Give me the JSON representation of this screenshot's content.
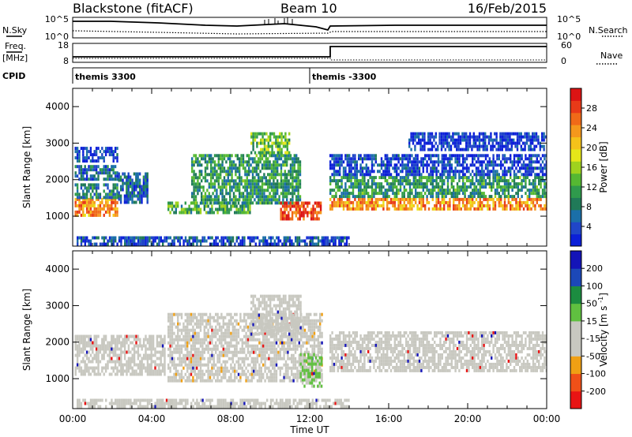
{
  "header": {
    "station": "Blackstone (fitACF)",
    "beam": "Beam 10",
    "date": "16/Feb/2015"
  },
  "sky_panel": {
    "left_label": "N.Sky",
    "right_label": "N.Search",
    "left_ticks": [
      "10^5",
      "10^0"
    ],
    "right_ticks": [
      "10^5",
      "10^0"
    ]
  },
  "freq_panel": {
    "left_label_top": "Freq.",
    "left_label_bottom": "[MHz]",
    "right_label": "Nave",
    "left_ticks": [
      "18",
      "8"
    ],
    "right_ticks": [
      "60",
      "0"
    ]
  },
  "cpid": {
    "label": "CPID",
    "segments": [
      {
        "start_hour": 0.0,
        "name": "themis 3300"
      },
      {
        "start_hour": 12.0,
        "name": "themis -3300"
      }
    ]
  },
  "chart_data": [
    {
      "type": "heatmap",
      "name": "power",
      "ylabel": "Slant Range [km]",
      "xlim": [
        0,
        24
      ],
      "ylim": [
        180,
        4500
      ],
      "y_ticks": [
        1000,
        2000,
        3000,
        4000
      ],
      "colorbar": {
        "label": "Power [dB]",
        "ticks": [
          "4",
          "8",
          "12",
          "16",
          "20",
          "24",
          "28"
        ],
        "range": [
          0,
          32
        ],
        "colors": [
          "#0b1fd8",
          "#2046c8",
          "#1b6fa8",
          "#207a58",
          "#2f9a4c",
          "#55b832",
          "#9fd21e",
          "#e6e619",
          "#f5c21a",
          "#f5981c",
          "#f06a18",
          "#e83a18",
          "#dc1414"
        ]
      },
      "bands": [
        {
          "t": [
            0.1,
            2.3
          ],
          "r": [
            1050,
            1500
          ],
          "p": 24
        },
        {
          "t": [
            0.1,
            2.3
          ],
          "r": [
            1500,
            1900
          ],
          "p": 8
        },
        {
          "t": [
            0.1,
            2.3
          ],
          "r": [
            2000,
            2400
          ],
          "p": 6
        },
        {
          "t": [
            0.1,
            2.3
          ],
          "r": [
            2500,
            2900
          ],
          "p": 3
        },
        {
          "t": [
            2.3,
            3.8
          ],
          "r": [
            1400,
            2200
          ],
          "p": 6
        },
        {
          "t": [
            4.8,
            9.0
          ],
          "r": [
            1100,
            1400
          ],
          "p": 12
        },
        {
          "t": [
            6.0,
            11.5
          ],
          "r": [
            1400,
            2700
          ],
          "p": 10
        },
        {
          "t": [
            9.0,
            11.0
          ],
          "r": [
            2700,
            3300
          ],
          "p": 14
        },
        {
          "t": [
            10.5,
            12.6
          ],
          "r": [
            900,
            1400
          ],
          "p": 28
        },
        {
          "t": [
            13.0,
            24.0
          ],
          "r": [
            1200,
            1500
          ],
          "p": 24
        },
        {
          "t": [
            13.0,
            24.0
          ],
          "r": [
            1500,
            2100
          ],
          "p": 10
        },
        {
          "t": [
            13.0,
            24.0
          ],
          "r": [
            2100,
            2700
          ],
          "p": 3
        },
        {
          "t": [
            17.0,
            24.0
          ],
          "r": [
            2800,
            3300
          ],
          "p": 2
        },
        {
          "t": [
            0.2,
            14.0
          ],
          "r": [
            180,
            450
          ],
          "p": 4
        }
      ]
    },
    {
      "type": "heatmap",
      "name": "velocity",
      "ylabel": "Slant Range [km]",
      "xlabel": "Time UT",
      "x_ticks": [
        "00:00",
        "04:00",
        "08:00",
        "12:00",
        "16:00",
        "20:00",
        "00:00"
      ],
      "xlim": [
        0,
        24
      ],
      "ylim": [
        180,
        4500
      ],
      "y_ticks": [
        1000,
        2000,
        3000,
        4000
      ],
      "colorbar": {
        "label": "Velocity [m s^-1]",
        "ticks": [
          "200",
          "100",
          "50",
          "15",
          "-15",
          "-50",
          "-100",
          "-200"
        ],
        "range": [
          -250,
          250
        ],
        "colors": [
          "#e81414",
          "#f05018",
          "#f0a014",
          "#c8c8c0",
          "#c8c8c0",
          "#60c040",
          "#1c8c40",
          "#1c48b8",
          "#1414b8"
        ]
      },
      "bands": [
        {
          "t": [
            0.1,
            4.7
          ],
          "r": [
            1100,
            2200
          ],
          "v": 0
        },
        {
          "t": [
            4.8,
            12.6
          ],
          "r": [
            900,
            2800
          ],
          "v": -60
        },
        {
          "t": [
            9.0,
            11.5
          ],
          "r": [
            2200,
            3300
          ],
          "v": 0
        },
        {
          "t": [
            11.5,
            12.6
          ],
          "r": [
            800,
            1700
          ],
          "v": 40
        },
        {
          "t": [
            13.0,
            24.0
          ],
          "r": [
            1200,
            2300
          ],
          "v": 0
        },
        {
          "t": [
            0.2,
            14.0
          ],
          "r": [
            180,
            450
          ],
          "v": -50
        }
      ]
    }
  ]
}
